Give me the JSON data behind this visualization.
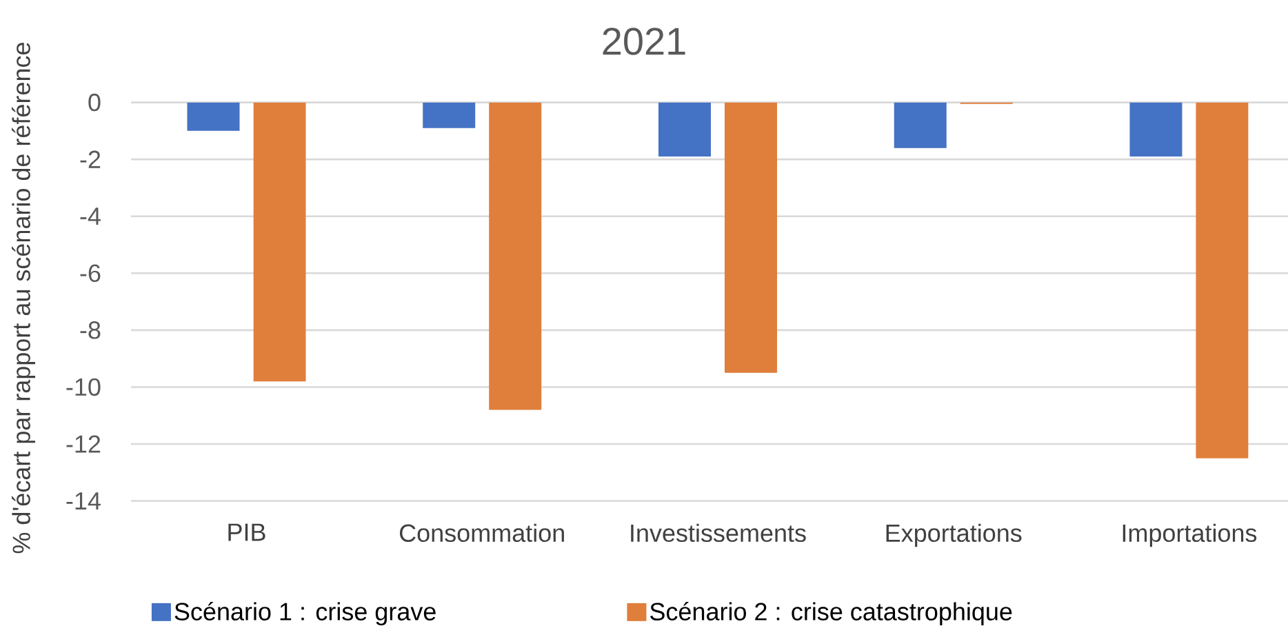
{
  "chart_data": {
    "type": "bar",
    "title": "2021",
    "ylabel": "% d'écart par rapport au scénario de référence",
    "categories": [
      "PIB",
      "Consommation",
      "Investissements",
      "Exportations",
      "Importations"
    ],
    "series": [
      {
        "name": "Scénario 1 : crise grave",
        "color": "#4472c4",
        "values": [
          -1.0,
          -0.9,
          -1.9,
          -1.6,
          -1.9
        ]
      },
      {
        "name": "Scénario 2 : crise catastrophique",
        "color": "#e07e3c",
        "values": [
          -9.8,
          -10.8,
          -9.5,
          -0.05,
          -12.5
        ]
      }
    ],
    "ylim": [
      -14,
      0
    ],
    "yticks": [
      -14,
      -12,
      -10,
      -8,
      -6,
      -4,
      -2,
      0
    ],
    "grid": "y",
    "legend": "bottom"
  }
}
